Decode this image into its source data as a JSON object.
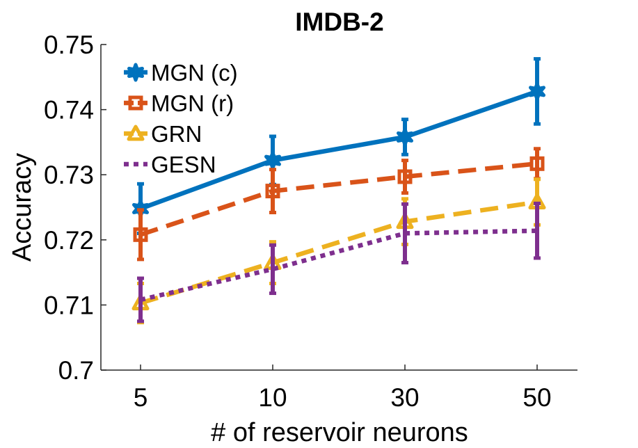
{
  "chart_data": {
    "type": "line",
    "title": "IMDB-2",
    "xlabel": "# of reservoir neurons",
    "ylabel": "Accuracy",
    "categories": [
      "5",
      "10",
      "30",
      "50"
    ],
    "ylim": [
      0.7,
      0.75
    ],
    "yticks": [
      0.7,
      0.71,
      0.72,
      0.73,
      0.74,
      0.75
    ],
    "ytick_labels": [
      "0.7",
      "0.71",
      "0.72",
      "0.73",
      "0.74",
      "0.75"
    ],
    "legend_position": "top-left",
    "series": [
      {
        "name": "MGN (c)",
        "color": "#0072BD",
        "line_style": "solid",
        "marker": "hexagram",
        "values": [
          0.7248,
          0.7322,
          0.7358,
          0.7428
        ],
        "error": [
          0.0038,
          0.0037,
          0.0027,
          0.005
        ]
      },
      {
        "name": "MGN (r)",
        "color": "#D95319",
        "line_style": "dashed",
        "marker": "square",
        "values": [
          0.7208,
          0.7275,
          0.7297,
          0.7317
        ],
        "error": [
          0.0038,
          0.0033,
          0.0025,
          0.0023
        ]
      },
      {
        "name": "GRN",
        "color": "#EDB120",
        "line_style": "dashed",
        "marker": "triangle",
        "values": [
          0.7103,
          0.7165,
          0.7228,
          0.7258
        ],
        "error": [
          0.003,
          0.0032,
          0.0035,
          0.0035
        ]
      },
      {
        "name": "GESN",
        "color": "#7E2F8E",
        "line_style": "dotted",
        "marker": "none",
        "values": [
          0.7108,
          0.7155,
          0.721,
          0.7214
        ],
        "error": [
          0.0033,
          0.0037,
          0.0045,
          0.0042
        ]
      }
    ]
  }
}
